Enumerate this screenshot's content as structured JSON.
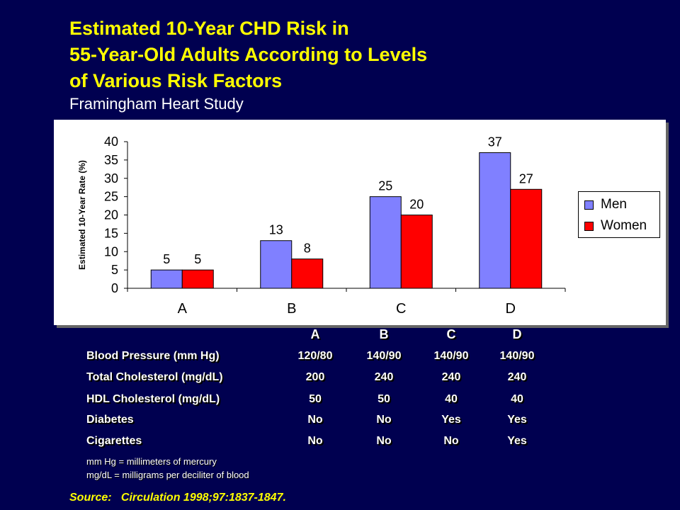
{
  "title_lines": [
    "Estimated 10-Year CHD Risk in",
    "55-Year-Old Adults According to Levels",
    "of Various Risk Factors"
  ],
  "subtitle": "Framingham Heart Study",
  "chart_data": {
    "type": "bar",
    "categories": [
      "A",
      "B",
      "C",
      "D"
    ],
    "series": [
      {
        "name": "Men",
        "values": [
          5,
          13,
          25,
          37
        ],
        "color": "#8080ff"
      },
      {
        "name": "Women",
        "values": [
          5,
          8,
          20,
          27
        ],
        "color": "#ff0000"
      }
    ],
    "ylabel": "Estimated 10-Year Rate (%)",
    "ylim": [
      0,
      40
    ],
    "yticks": [
      0,
      5,
      10,
      15,
      20,
      25,
      30,
      35,
      40
    ],
    "legend_position": "right",
    "grid": false
  },
  "table": {
    "headers": [
      "A",
      "B",
      "C",
      "D"
    ],
    "rows": [
      {
        "label": "Blood Pressure (mm Hg)",
        "values": [
          "120/80",
          "140/90",
          "140/90",
          "140/90"
        ]
      },
      {
        "label": "Total Cholesterol (mg/dL)",
        "values": [
          "200",
          "240",
          "240",
          "240"
        ]
      },
      {
        "label": "HDL Cholesterol (mg/dL)",
        "values": [
          "50",
          "50",
          "40",
          "40"
        ]
      },
      {
        "label": "Diabetes",
        "values": [
          "No",
          "No",
          "Yes",
          "Yes"
        ]
      },
      {
        "label": "Cigarettes",
        "values": [
          "No",
          "No",
          "No",
          "Yes"
        ]
      }
    ]
  },
  "notes": [
    "mm Hg = millimeters of mercury",
    "mg/dL  = milligrams per deciliter of blood"
  ],
  "source": "Source:   Circulation 1998;97:1837-1847."
}
